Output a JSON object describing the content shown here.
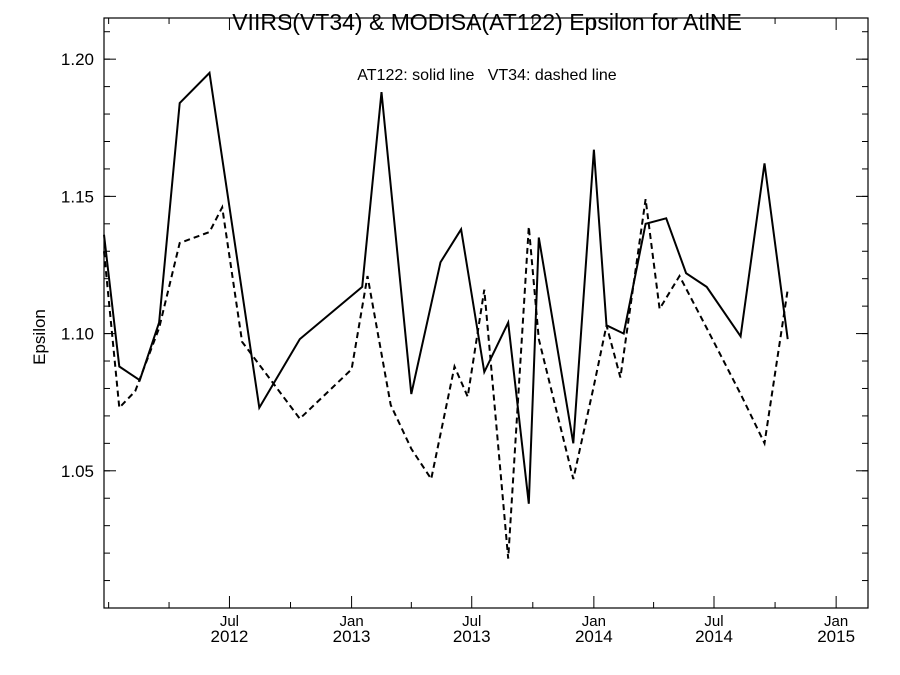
{
  "chart_data": {
    "type": "line",
    "title": "VIIRS(VT34) & MODISA(AT122)  Epsilon for AtlNE",
    "annotation": "AT122: solid line   VT34: dashed line",
    "xlabel": "",
    "ylabel": "Epsilon",
    "ylim": [
      1.0,
      1.215
    ],
    "xlim": [
      "2011-12-25",
      "2015-02-18"
    ],
    "y_ticks": [
      {
        "value": 1.05,
        "label": "1.05"
      },
      {
        "value": 1.1,
        "label": "1.10"
      },
      {
        "value": 1.15,
        "label": "1.15"
      },
      {
        "value": 1.2,
        "label": "1.20"
      }
    ],
    "x_ticks": [
      {
        "date": "2012-07-01",
        "month": "Jul",
        "year": "2012"
      },
      {
        "date": "2013-01-01",
        "month": "Jan",
        "year": "2013"
      },
      {
        "date": "2013-07-01",
        "month": "Jul",
        "year": "2013"
      },
      {
        "date": "2014-01-01",
        "month": "Jan",
        "year": "2014"
      },
      {
        "date": "2014-07-01",
        "month": "Jul",
        "year": "2014"
      },
      {
        "date": "2015-01-01",
        "month": "Jan",
        "year": "2015"
      }
    ],
    "x_minor_ticks": [
      "2012-01-01",
      "2012-04-01",
      "2012-10-01",
      "2013-04-01",
      "2013-10-01",
      "2014-04-01",
      "2014-10-01"
    ],
    "series": [
      {
        "name": "AT122",
        "style": "solid",
        "color": "#000000",
        "points": [
          {
            "x": "2011-12-25",
            "y": 1.136
          },
          {
            "x": "2012-01-17",
            "y": 1.088
          },
          {
            "x": "2012-02-17",
            "y": 1.083
          },
          {
            "x": "2012-03-17",
            "y": 1.104
          },
          {
            "x": "2012-04-17",
            "y": 1.184
          },
          {
            "x": "2012-06-01",
            "y": 1.195
          },
          {
            "x": "2012-08-15",
            "y": 1.073
          },
          {
            "x": "2012-10-15",
            "y": 1.098
          },
          {
            "x": "2013-01-17",
            "y": 1.117
          },
          {
            "x": "2013-02-15",
            "y": 1.188
          },
          {
            "x": "2013-04-01",
            "y": 1.078
          },
          {
            "x": "2013-05-15",
            "y": 1.126
          },
          {
            "x": "2013-06-15",
            "y": 1.138
          },
          {
            "x": "2013-07-20",
            "y": 1.086
          },
          {
            "x": "2013-08-25",
            "y": 1.104
          },
          {
            "x": "2013-09-25",
            "y": 1.038
          },
          {
            "x": "2013-10-10",
            "y": 1.135
          },
          {
            "x": "2013-12-01",
            "y": 1.06
          },
          {
            "x": "2014-01-01",
            "y": 1.167
          },
          {
            "x": "2014-01-20",
            "y": 1.103
          },
          {
            "x": "2014-02-15",
            "y": 1.1
          },
          {
            "x": "2014-03-20",
            "y": 1.14
          },
          {
            "x": "2014-04-20",
            "y": 1.142
          },
          {
            "x": "2014-05-20",
            "y": 1.122
          },
          {
            "x": "2014-06-20",
            "y": 1.117
          },
          {
            "x": "2014-08-10",
            "y": 1.099
          },
          {
            "x": "2014-09-15",
            "y": 1.162
          },
          {
            "x": "2014-10-20",
            "y": 1.098
          }
        ]
      },
      {
        "name": "VT34",
        "style": "dashed",
        "color": "#000000",
        "points": [
          {
            "x": "2011-12-25",
            "y": 1.13
          },
          {
            "x": "2012-01-17",
            "y": 1.073
          },
          {
            "x": "2012-02-10",
            "y": 1.079
          },
          {
            "x": "2012-03-17",
            "y": 1.102
          },
          {
            "x": "2012-04-17",
            "y": 1.133
          },
          {
            "x": "2012-06-01",
            "y": 1.137
          },
          {
            "x": "2012-06-20",
            "y": 1.146
          },
          {
            "x": "2012-07-20",
            "y": 1.097
          },
          {
            "x": "2012-10-15",
            "y": 1.069
          },
          {
            "x": "2013-01-01",
            "y": 1.087
          },
          {
            "x": "2013-01-25",
            "y": 1.121
          },
          {
            "x": "2013-03-01",
            "y": 1.074
          },
          {
            "x": "2013-04-01",
            "y": 1.058
          },
          {
            "x": "2013-05-01",
            "y": 1.047
          },
          {
            "x": "2013-06-05",
            "y": 1.088
          },
          {
            "x": "2013-06-25",
            "y": 1.077
          },
          {
            "x": "2013-07-20",
            "y": 1.116
          },
          {
            "x": "2013-08-25",
            "y": 1.018
          },
          {
            "x": "2013-09-25",
            "y": 1.139
          },
          {
            "x": "2013-10-10",
            "y": 1.098
          },
          {
            "x": "2013-12-01",
            "y": 1.047
          },
          {
            "x": "2014-01-01",
            "y": 1.081
          },
          {
            "x": "2014-01-20",
            "y": 1.103
          },
          {
            "x": "2014-02-10",
            "y": 1.084
          },
          {
            "x": "2014-03-20",
            "y": 1.149
          },
          {
            "x": "2014-04-10",
            "y": 1.109
          },
          {
            "x": "2014-05-10",
            "y": 1.121
          },
          {
            "x": "2014-06-20",
            "y": 1.102
          },
          {
            "x": "2014-08-10",
            "y": 1.078
          },
          {
            "x": "2014-09-15",
            "y": 1.06
          },
          {
            "x": "2014-10-20",
            "y": 1.116
          }
        ]
      }
    ]
  }
}
